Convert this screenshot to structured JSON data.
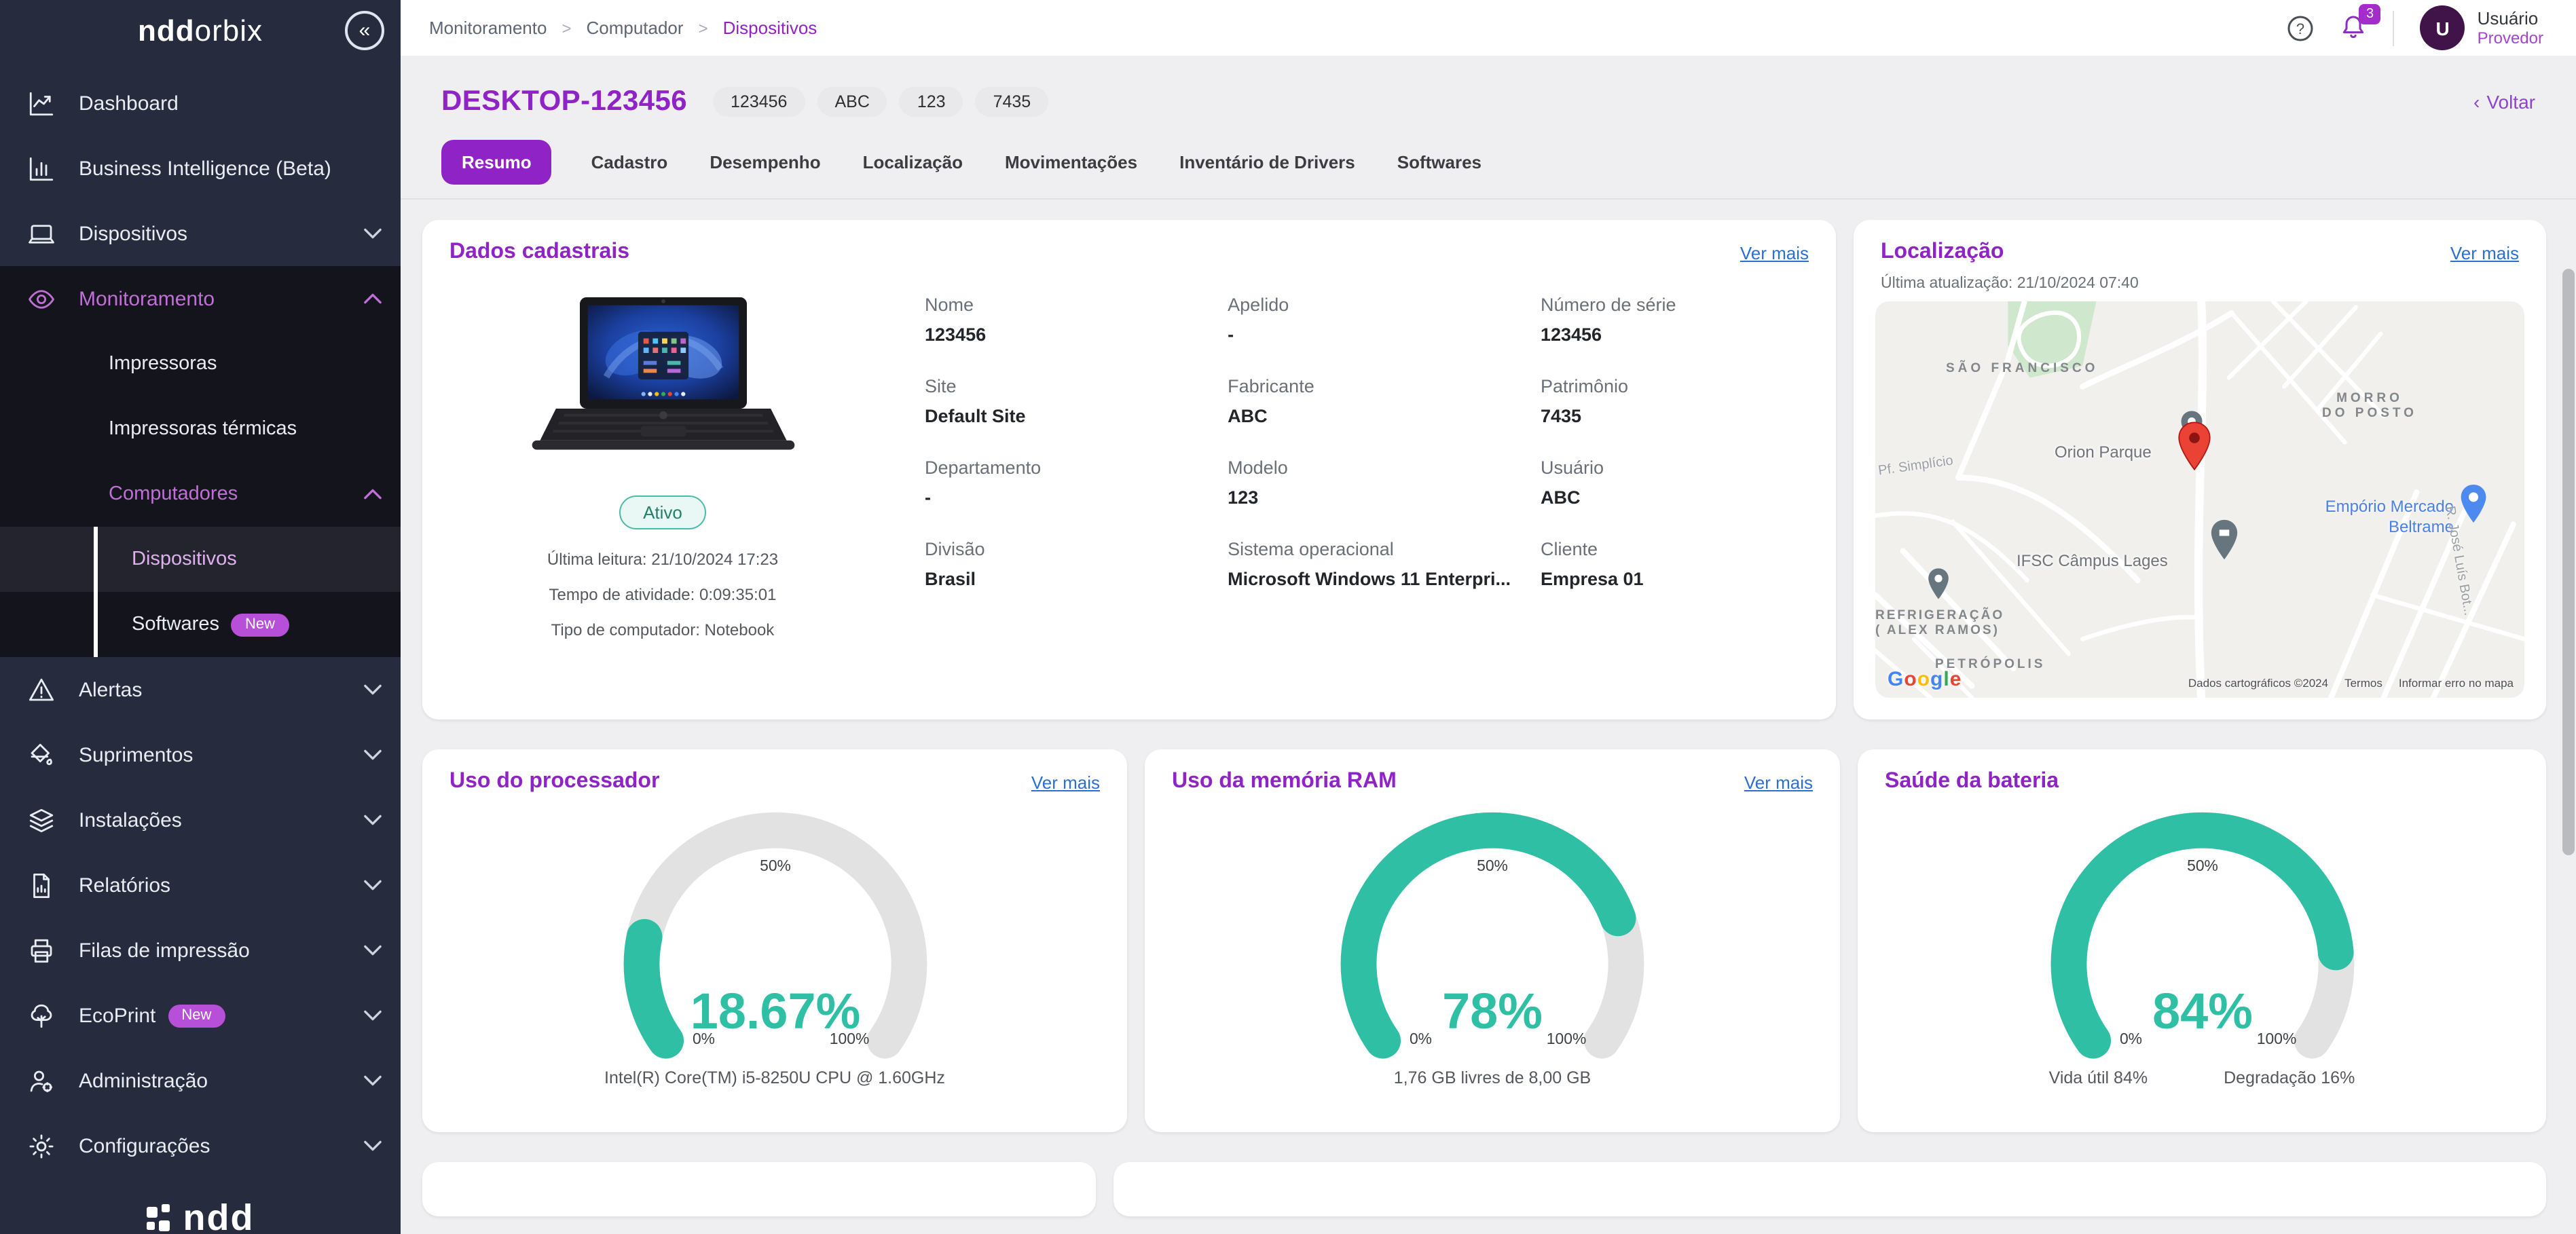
{
  "theme": {
    "accent": "#9023c5",
    "teal": "#2ebfa5",
    "link": "#2b6fd4",
    "sidebar_bg": "#262c3d"
  },
  "sidebar": {
    "logo_bold": "ndd",
    "logo_light": "orbix",
    "collapse_icon": "«",
    "footer_logo": "ndd",
    "items": [
      {
        "id": "dashboard",
        "label": "Dashboard",
        "icon": "dashboard",
        "level": 0
      },
      {
        "id": "business-intelligence",
        "label": "Business Intelligence (Beta)",
        "icon": "bi",
        "level": 0
      },
      {
        "id": "dispositivos",
        "label": "Dispositivos",
        "icon": "devices",
        "level": 0,
        "chevron": "down"
      },
      {
        "id": "monitoramento",
        "label": "Monitoramento",
        "icon": "monitoring",
        "level": 0,
        "chevron": "up",
        "accent": true,
        "group": true
      },
      {
        "id": "impressoras",
        "label": "Impressoras",
        "level": 1,
        "group": true
      },
      {
        "id": "impressoras-termicas",
        "label": "Impressoras térmicas",
        "level": 1,
        "group": true
      },
      {
        "id": "computadores",
        "label": "Computadores",
        "level": 1,
        "chevron": "up",
        "accent": true,
        "group": true
      },
      {
        "id": "computadores-dispositivos",
        "label": "Dispositivos",
        "level": 2,
        "group": true,
        "rail": true,
        "active": true
      },
      {
        "id": "computadores-softwares",
        "label": "Softwares",
        "level": 2,
        "group": true,
        "rail": true,
        "badge": "New"
      },
      {
        "id": "alertas",
        "label": "Alertas",
        "icon": "alerts",
        "level": 0,
        "chevron": "down"
      },
      {
        "id": "suprimentos",
        "label": "Suprimentos",
        "icon": "supplies",
        "level": 0,
        "chevron": "down"
      },
      {
        "id": "instalacoes",
        "label": "Instalações",
        "icon": "installs",
        "level": 0,
        "chevron": "down"
      },
      {
        "id": "relatorios",
        "label": "Relatórios",
        "icon": "reports",
        "level": 0,
        "chevron": "down"
      },
      {
        "id": "filas-de-impressao",
        "label": "Filas de impressão",
        "icon": "queues",
        "level": 0,
        "chevron": "down"
      },
      {
        "id": "ecoprint",
        "label": "EcoPrint",
        "icon": "ecoprint",
        "level": 0,
        "chevron": "down",
        "badge": "New"
      },
      {
        "id": "administracao",
        "label": "Administração",
        "icon": "admin",
        "level": 0,
        "chevron": "down"
      },
      {
        "id": "configuracoes",
        "label": "Configurações",
        "icon": "settings",
        "level": 0,
        "chevron": "down"
      }
    ]
  },
  "header": {
    "breadcrumb": [
      {
        "label": "Monitoramento"
      },
      {
        "label": "Computador"
      },
      {
        "label": "Dispositivos",
        "active": true
      }
    ],
    "separator": ">",
    "notification_count": "3",
    "user": {
      "initial": "U",
      "name": "Usuário",
      "role": "Provedor"
    }
  },
  "device": {
    "title": "DESKTOP-123456",
    "tags": [
      "123456",
      "ABC",
      "123",
      "7435"
    ],
    "back_chevron": "‹",
    "back_label": "Voltar",
    "tabs": [
      {
        "label": "Resumo",
        "active": true
      },
      {
        "label": "Cadastro"
      },
      {
        "label": "Desempenho"
      },
      {
        "label": "Localização"
      },
      {
        "label": "Movimentações"
      },
      {
        "label": "Inventário de Drivers"
      },
      {
        "label": "Softwares"
      }
    ]
  },
  "dados": {
    "title": "Dados cadastrais",
    "ver_mais": "Ver mais",
    "status": "Ativo",
    "meta": [
      "Última leitura: 21/10/2024 17:23",
      "Tempo de atividade: 0:09:35:01",
      "Tipo de computador: Notebook"
    ],
    "fields": [
      {
        "label": "Nome",
        "value": "123456"
      },
      {
        "label": "Apelido",
        "value": "-"
      },
      {
        "label": "Número de série",
        "value": "123456"
      },
      {
        "label": "Site",
        "value": "Default Site"
      },
      {
        "label": "Fabricante",
        "value": "ABC"
      },
      {
        "label": "Patrimônio",
        "value": "7435"
      },
      {
        "label": "Departamento",
        "value": "-"
      },
      {
        "label": "Modelo",
        "value": "123"
      },
      {
        "label": "Usuário",
        "value": "ABC"
      },
      {
        "label": "Divisão",
        "value": "Brasil"
      },
      {
        "label": "Sistema operacional",
        "value": "Microsoft Windows 11 Enterpri..."
      },
      {
        "label": "Cliente",
        "value": "Empresa 01"
      }
    ]
  },
  "localizacao": {
    "title": "Localização",
    "ver_mais": "Ver mais",
    "updated": "Última atualização: 21/10/2024 07:40",
    "map": {
      "area1": "SÃO FRANCISCO",
      "area2": "MORRO\nDO POSTO",
      "poi_main": "Orion Parque",
      "street1": "Pf. Simplício",
      "poi_blue": "Empório Mercado\nBeltrame",
      "poi_campus": "IFSC Câmpus Lages",
      "poi_refrig": "REFRIGERAÇÃO\n( ALEX RAMOS)",
      "street2": "R. José Luís Bot...",
      "street3": "PETRÓPOLIS",
      "google": "Google",
      "attribution": "Dados cartográficos ©2024",
      "terms": "Termos",
      "report": "Informar erro no mapa"
    }
  },
  "chart_data": [
    {
      "type": "gauge",
      "title": "Uso do processador",
      "ver_mais": "Ver mais",
      "value": 18.67,
      "display": "18.67%",
      "min": 0,
      "max": 100,
      "ticks": [
        "0%",
        "50%",
        "100%"
      ],
      "caption": "Intel(R) Core(TM) i5-8250U CPU @ 1.60GHz",
      "color": "#2ebfa5",
      "track_color": "#e2e2e2"
    },
    {
      "type": "gauge",
      "title": "Uso da memória RAM",
      "ver_mais": "Ver mais",
      "value": 78,
      "display": "78%",
      "min": 0,
      "max": 100,
      "ticks": [
        "0%",
        "50%",
        "100%"
      ],
      "caption": "1,76 GB livres de 8,00 GB",
      "color": "#2ebfa5",
      "track_color": "#e2e2e2"
    },
    {
      "type": "gauge",
      "title": "Saúde da bateria",
      "value": 84,
      "display": "84%",
      "min": 0,
      "max": 100,
      "ticks": [
        "0%",
        "50%",
        "100%"
      ],
      "captions": [
        "Vida útil 84%",
        "Degradação 16%"
      ],
      "color": "#2ebfa5",
      "track_color": "#e2e2e2"
    }
  ]
}
